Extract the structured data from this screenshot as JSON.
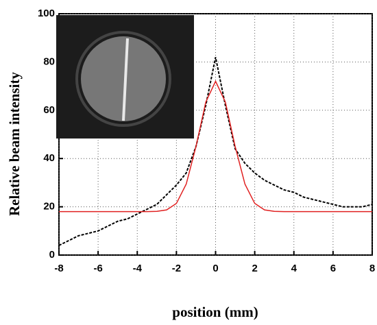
{
  "chart_data": {
    "type": "line",
    "x_label": "position (mm)",
    "y_label": "Relative beam intensity",
    "xlim": [
      -8,
      8
    ],
    "xticks": [
      -8,
      -6,
      -4,
      -2,
      0,
      2,
      4,
      6,
      8
    ],
    "ylim": [
      0,
      100
    ],
    "yticks": [
      0,
      20,
      40,
      60,
      80,
      100
    ],
    "grid": true,
    "x": [
      -8,
      -7.5,
      -7,
      -6.5,
      -6,
      -5.5,
      -5,
      -4.5,
      -4,
      -3.5,
      -3,
      -2.5,
      -2,
      -1.5,
      -1,
      -0.5,
      0,
      0.5,
      1,
      1.5,
      2,
      2.5,
      3,
      3.5,
      4,
      4.5,
      5,
      5.5,
      6,
      6.5,
      7,
      7.5,
      8
    ],
    "series": [
      {
        "color": "#000000",
        "dashed": true,
        "values": [
          4,
          6,
          8,
          9,
          10,
          12,
          14,
          15,
          17,
          19,
          21,
          25,
          29,
          34,
          45,
          62,
          82,
          62,
          44,
          38,
          34,
          31,
          29,
          27,
          26,
          24,
          23,
          22,
          21,
          20,
          20,
          20,
          21
        ]
      },
      {
        "color": "#e02020",
        "dashed": false,
        "values": [
          18,
          18,
          18,
          18,
          18,
          18,
          18,
          18,
          18,
          18,
          18.1,
          18.7,
          21.4,
          29.4,
          45,
          63.4,
          72,
          63.4,
          45,
          29.4,
          21.4,
          18.7,
          18.1,
          18,
          18,
          18,
          18,
          18,
          18,
          18,
          18,
          18,
          18
        ]
      }
    ]
  }
}
